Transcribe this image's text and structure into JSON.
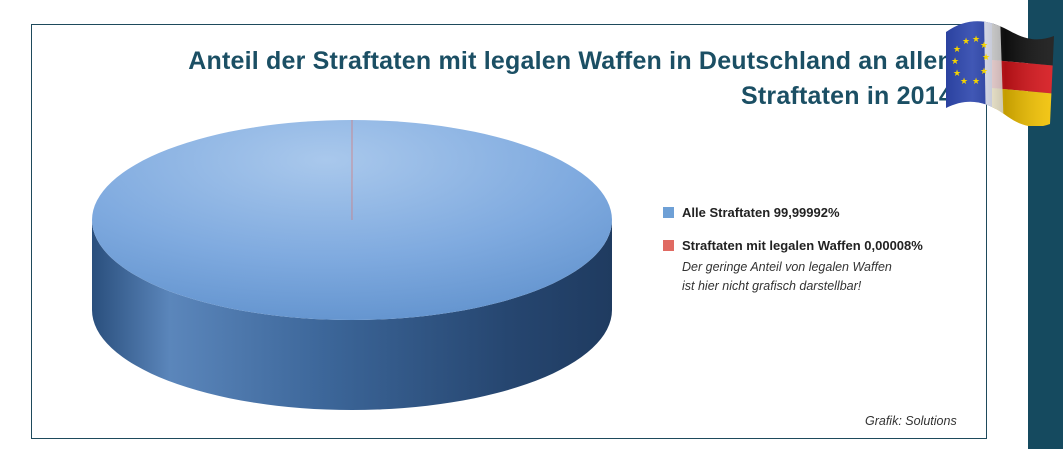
{
  "chart_data": {
    "type": "pie",
    "title_line1": "Anteil der Straftaten mit legalen Waffen in Deutschland an allen",
    "title_line2": "Straftaten in 2014",
    "slices": [
      {
        "label": "Alle Straftaten 99,99992%",
        "value": 99.99992,
        "color": "#6ea0d6"
      },
      {
        "label": "Straftaten mit legalen Waffen 0,00008%",
        "value": 8e-05,
        "color": "#e06a62"
      }
    ],
    "legend_position": "right",
    "note_line1": "Der geringe  Anteil von legalen Waffen",
    "note_line2": "ist hier nicht grafisch darstellbar!"
  },
  "credit": "Grafik: Solutions",
  "colors": {
    "title": "#1b4f64",
    "frame": "#1e4a5c",
    "side_bar": "#154a5f",
    "pie_top": "#7aa8dc",
    "pie_side": "#2f5b8c"
  },
  "icons": {
    "flag": "eu-germany-flag-icon"
  }
}
